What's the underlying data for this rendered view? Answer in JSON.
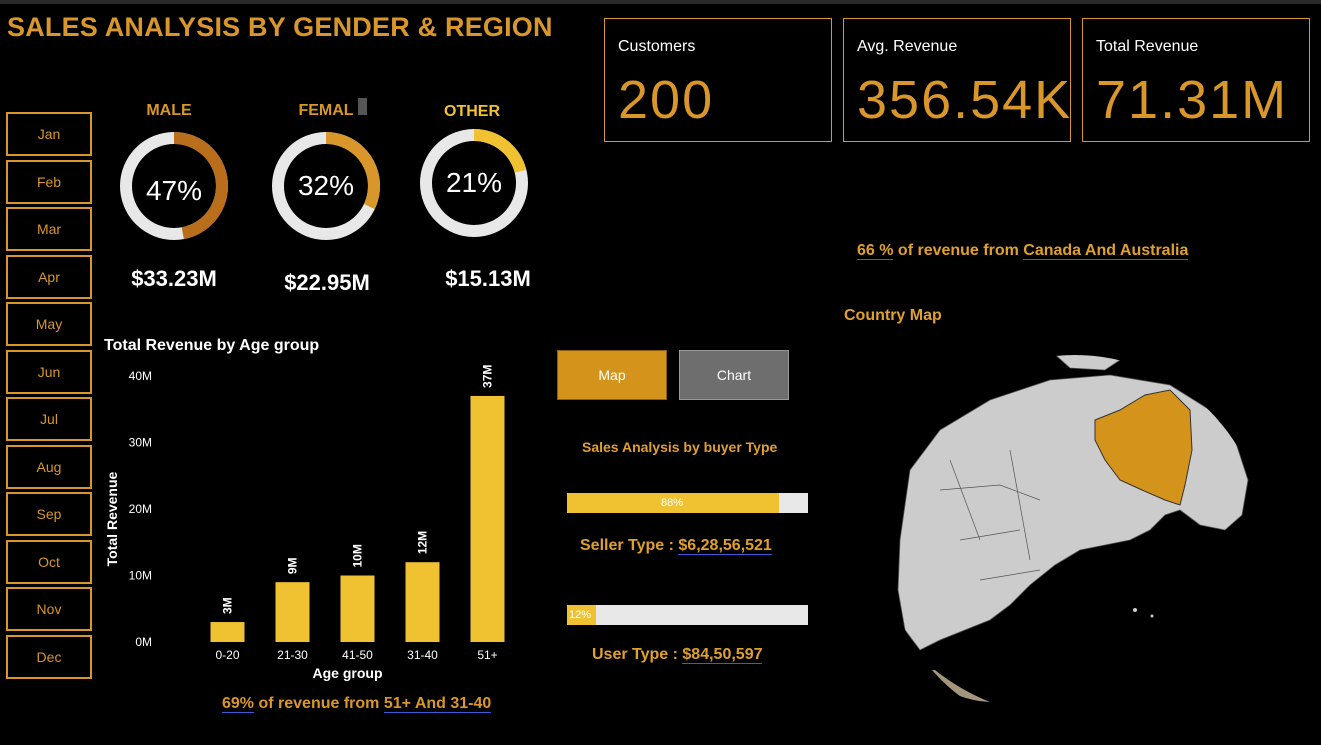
{
  "title": "SALES ANALYSIS BY GENDER & REGION",
  "kpis": [
    {
      "label": "Customers",
      "value": "200"
    },
    {
      "label": "Avg. Revenue",
      "value": "356.54K"
    },
    {
      "label": "Total Revenue",
      "value": "71.31M"
    }
  ],
  "months": [
    "Jan",
    "Feb",
    "Mar",
    "Apr",
    "May",
    "Jun",
    "Jul",
    "Aug",
    "Sep",
    "Oct",
    "Nov",
    "Dec"
  ],
  "gender": [
    {
      "label": "MALE",
      "percent_text": "47%",
      "percent": 47,
      "amount": "$33.23M",
      "color": "#b86e1a"
    },
    {
      "label": "FEMAL",
      "percent_text": "32%",
      "percent": 32,
      "amount": "$22.95M",
      "color": "#d9962a"
    },
    {
      "label": "OTHER",
      "percent_text": "21%",
      "percent": 21,
      "amount": "$15.13M",
      "color": "#f0c232"
    }
  ],
  "colors": {
    "accent": "#d9962a",
    "bar": "#f0c232",
    "ring_track": "#e8e8e8",
    "map_highlight": "#d4941c",
    "land": "#cccccc"
  },
  "chart_data": {
    "type": "bar",
    "title": "Total Revenue by Age group",
    "xlabel": "Age group",
    "ylabel": "Total Revenue",
    "categories": [
      "0-20",
      "21-30",
      "41-50",
      "31-40",
      "51+"
    ],
    "values": [
      3,
      9,
      10,
      12,
      37
    ],
    "data_labels": [
      "3M",
      "9M",
      "10M",
      "12M",
      "37M"
    ],
    "yticks": [
      0,
      10,
      20,
      30,
      40
    ],
    "ytick_labels": [
      "0M",
      "10M",
      "20M",
      "30M",
      "40M"
    ],
    "ylim": [
      0,
      40
    ]
  },
  "age_note": {
    "pct": "69%",
    "mid": " of revenue from ",
    "groups": "51+ And 31-40"
  },
  "toggles": {
    "map": "Map",
    "chart": "Chart"
  },
  "buyer": {
    "title": "Sales Analysis by buyer Type",
    "seller": {
      "pct_text": "88%",
      "fraction": 0.88,
      "label": "Seller Type : ",
      "value": "$6,28,56,521"
    },
    "user": {
      "pct_text": "12%",
      "fraction": 0.12,
      "label": "User Type : ",
      "value": "$84,50,597"
    }
  },
  "country_note": {
    "pct": "66 %",
    "mid": " of revenue from ",
    "countries": "Canada And Australia"
  },
  "map_title": "Country Map",
  "icons": {
    "globe": "globe-map"
  }
}
